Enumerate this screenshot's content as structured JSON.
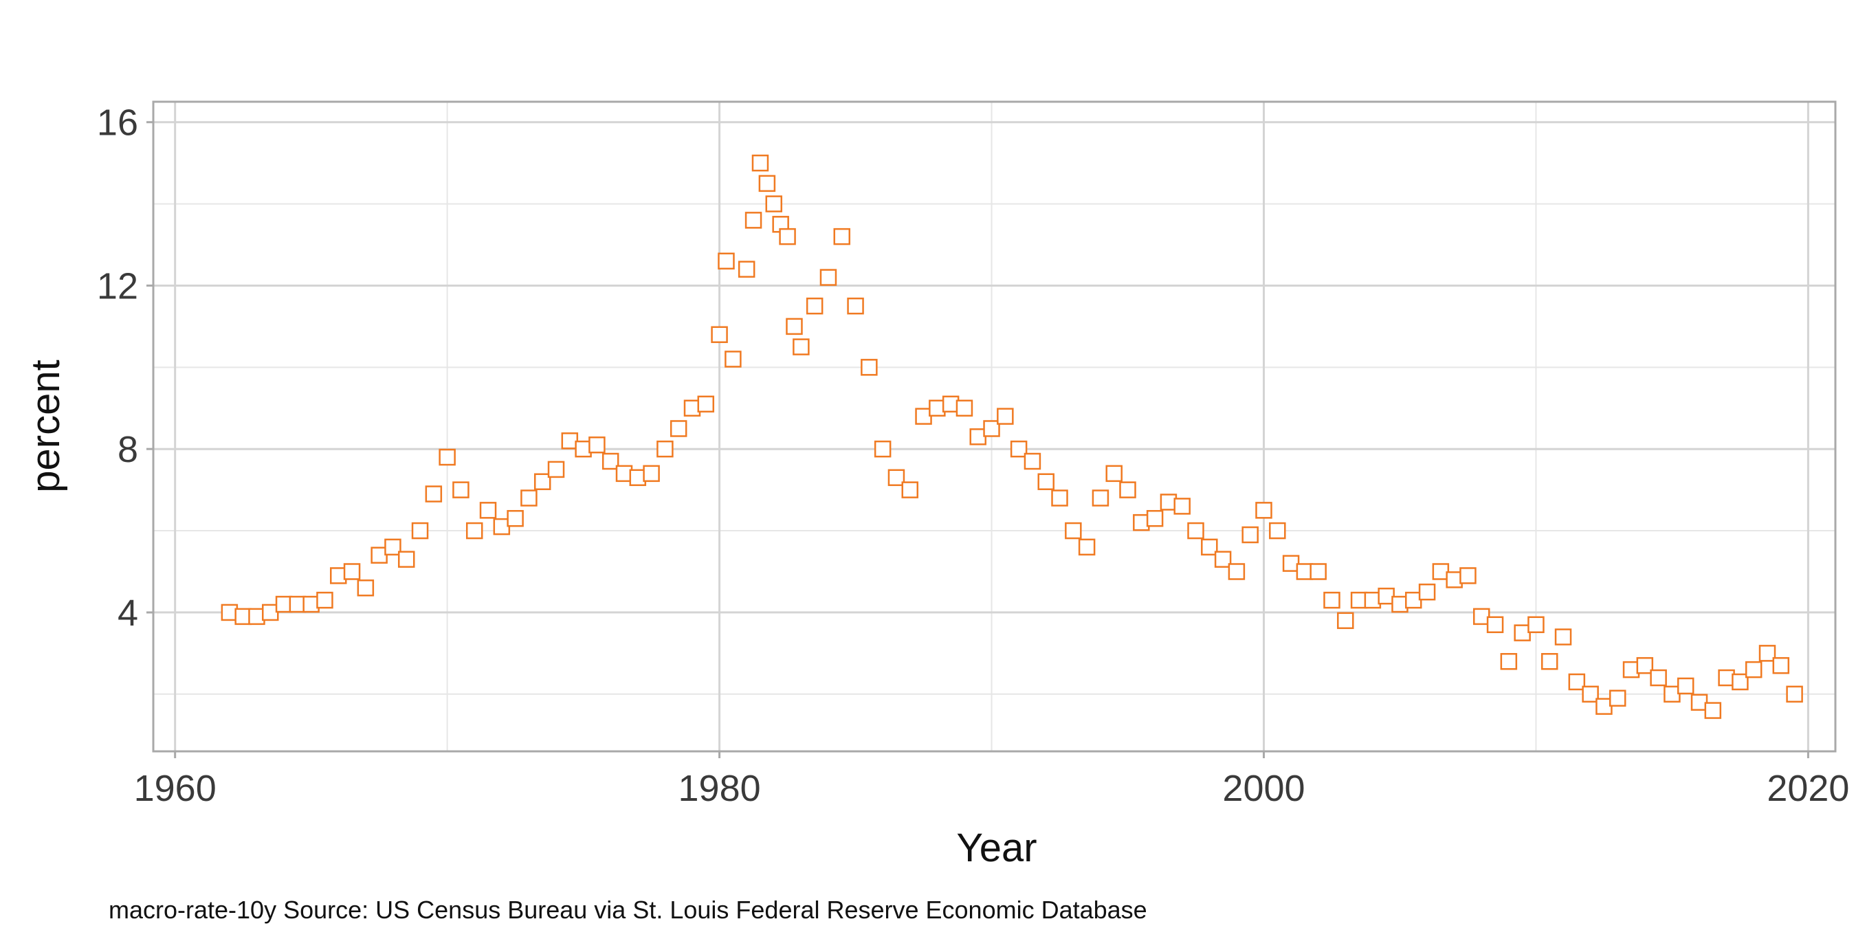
{
  "caption": "macro-rate-10y   Source: US Census Bureau via St. Louis Federal Reserve Economic Database",
  "chart_data": {
    "type": "scatter",
    "title": "",
    "xlabel": "Year",
    "ylabel": "percent",
    "xlim": [
      1959.2,
      2021.0
    ],
    "ylim": [
      0.6,
      16.5
    ],
    "x_ticks": [
      1960,
      1980,
      2000,
      2020
    ],
    "y_ticks": [
      4,
      8,
      12,
      16
    ],
    "x_tick_labels": [
      "1960",
      "1980",
      "2000",
      "2020"
    ],
    "y_tick_labels": [
      "4",
      "8",
      "12",
      "16"
    ],
    "grid": true,
    "legend": "none",
    "marker": "open-square",
    "color": "#f07a22",
    "series": [
      {
        "x": [
          1962.0,
          1962.5,
          1963.0,
          1963.5,
          1964.0,
          1964.5,
          1965.0,
          1965.5,
          1966.0,
          1966.5,
          1967.0,
          1967.5,
          1968.0,
          1968.5,
          1969.0,
          1969.5,
          1970.0,
          1970.5,
          1971.0,
          1971.5,
          1972.0,
          1972.5,
          1973.0,
          1973.5,
          1974.0,
          1974.5,
          1975.0,
          1975.5,
          1976.0,
          1976.5,
          1977.0,
          1977.5,
          1978.0,
          1978.5,
          1979.0,
          1979.5,
          1980.0,
          1980.25,
          1980.5,
          1981.0,
          1981.25,
          1981.5,
          1981.75,
          1982.0,
          1982.25,
          1982.5,
          1982.75,
          1983.0,
          1983.5,
          1984.0,
          1984.5,
          1985.0,
          1985.5,
          1986.0,
          1986.5,
          1987.0,
          1987.5,
          1988.0,
          1988.5,
          1989.0,
          1989.5,
          1990.0,
          1990.5,
          1991.0,
          1991.5,
          1992.0,
          1992.5,
          1993.0,
          1993.5,
          1994.0,
          1994.5,
          1995.0,
          1995.5,
          1996.0,
          1996.5,
          1997.0,
          1997.5,
          1998.0,
          1998.5,
          1999.0,
          1999.5,
          2000.0,
          2000.5,
          2001.0,
          2001.5,
          2002.0,
          2002.5,
          2003.0,
          2003.5,
          2004.0,
          2004.5,
          2005.0,
          2005.5,
          2006.0,
          2006.5,
          2007.0,
          2007.5,
          2008.0,
          2008.5,
          2009.0,
          2009.5,
          2010.0,
          2010.5,
          2011.0,
          2011.5,
          2012.0,
          2012.5,
          2013.0,
          2013.5,
          2014.0,
          2014.5,
          2015.0,
          2015.5,
          2016.0,
          2016.5,
          2017.0,
          2017.5,
          2018.0,
          2018.5,
          2019.0,
          2019.5
        ],
        "y": [
          4.0,
          3.9,
          3.9,
          4.0,
          4.2,
          4.2,
          4.2,
          4.3,
          4.9,
          5.0,
          4.6,
          5.4,
          5.6,
          5.3,
          6.0,
          6.9,
          7.8,
          7.0,
          6.0,
          6.5,
          6.1,
          6.3,
          6.8,
          7.2,
          7.5,
          8.2,
          8.0,
          8.1,
          7.7,
          7.4,
          7.3,
          7.4,
          8.0,
          8.5,
          9.0,
          9.1,
          10.8,
          12.6,
          10.2,
          12.4,
          13.6,
          15.0,
          14.5,
          14.0,
          13.5,
          13.2,
          11.0,
          10.5,
          11.5,
          12.2,
          13.2,
          11.5,
          10.0,
          8.0,
          7.3,
          7.0,
          8.8,
          9.0,
          9.1,
          9.0,
          8.3,
          8.5,
          8.8,
          8.0,
          7.7,
          7.2,
          6.8,
          6.0,
          5.6,
          6.8,
          7.4,
          7.0,
          6.2,
          6.3,
          6.7,
          6.6,
          6.0,
          5.6,
          5.3,
          5.0,
          5.9,
          6.5,
          6.0,
          5.2,
          5.0,
          5.0,
          4.3,
          3.8,
          4.3,
          4.3,
          4.4,
          4.2,
          4.3,
          4.5,
          5.0,
          4.8,
          4.9,
          3.9,
          3.7,
          2.8,
          3.5,
          3.7,
          2.8,
          3.4,
          2.3,
          2.0,
          1.7,
          1.9,
          2.6,
          2.7,
          2.4,
          2.0,
          2.2,
          1.8,
          1.6,
          2.4,
          2.3,
          2.6,
          3.0,
          2.7,
          2.0
        ]
      }
    ]
  }
}
